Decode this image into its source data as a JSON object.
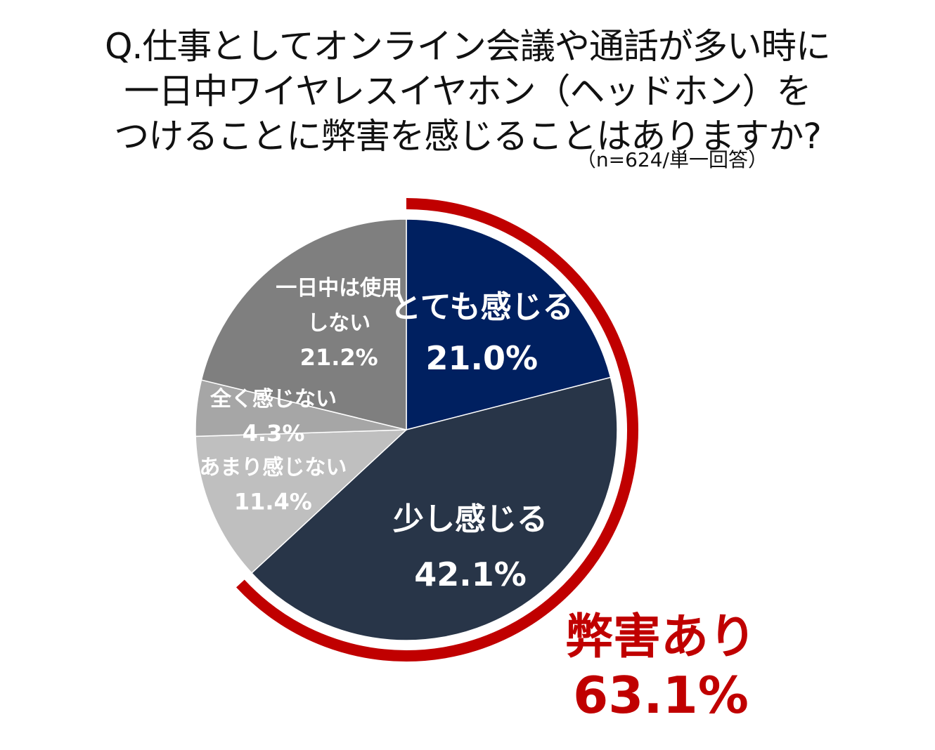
{
  "title": {
    "line1": "Q.仕事としてオンライン会議や通話が多い時に",
    "line2": "一日中ワイヤレスイヤホン（ヘッドホン）を",
    "line3": "つけることに弊害を感じることはありますか?"
  },
  "sample_note": "（n=624/単一回答）",
  "chart_data": {
    "type": "pie",
    "start": "12 o'clock",
    "direction": "clockwise",
    "slices": [
      {
        "label": "とても感じる",
        "value": 21.0,
        "value_label": "21.0%",
        "color": "#002060"
      },
      {
        "label": "少し感じる",
        "value": 42.1,
        "value_label": "42.1%",
        "color": "#283548"
      },
      {
        "label": "あまり感じない",
        "value": 11.4,
        "value_label": "11.4%",
        "color": "#bfbfbf"
      },
      {
        "label": "全く感じない",
        "value": 4.3,
        "value_label": "4.3%",
        "color": "#a6a6a6"
      },
      {
        "label": "一日中は使用しない",
        "label_lines": [
          "一日中は使用",
          "しない"
        ],
        "value": 21.2,
        "value_label": "21.2%",
        "color": "#7f7f7f"
      }
    ],
    "callout": {
      "label": "弊害あり",
      "value": 63.1,
      "value_label": "63.1%",
      "color": "#c00000",
      "covers": [
        "とても感じる",
        "少し感じる"
      ]
    }
  }
}
